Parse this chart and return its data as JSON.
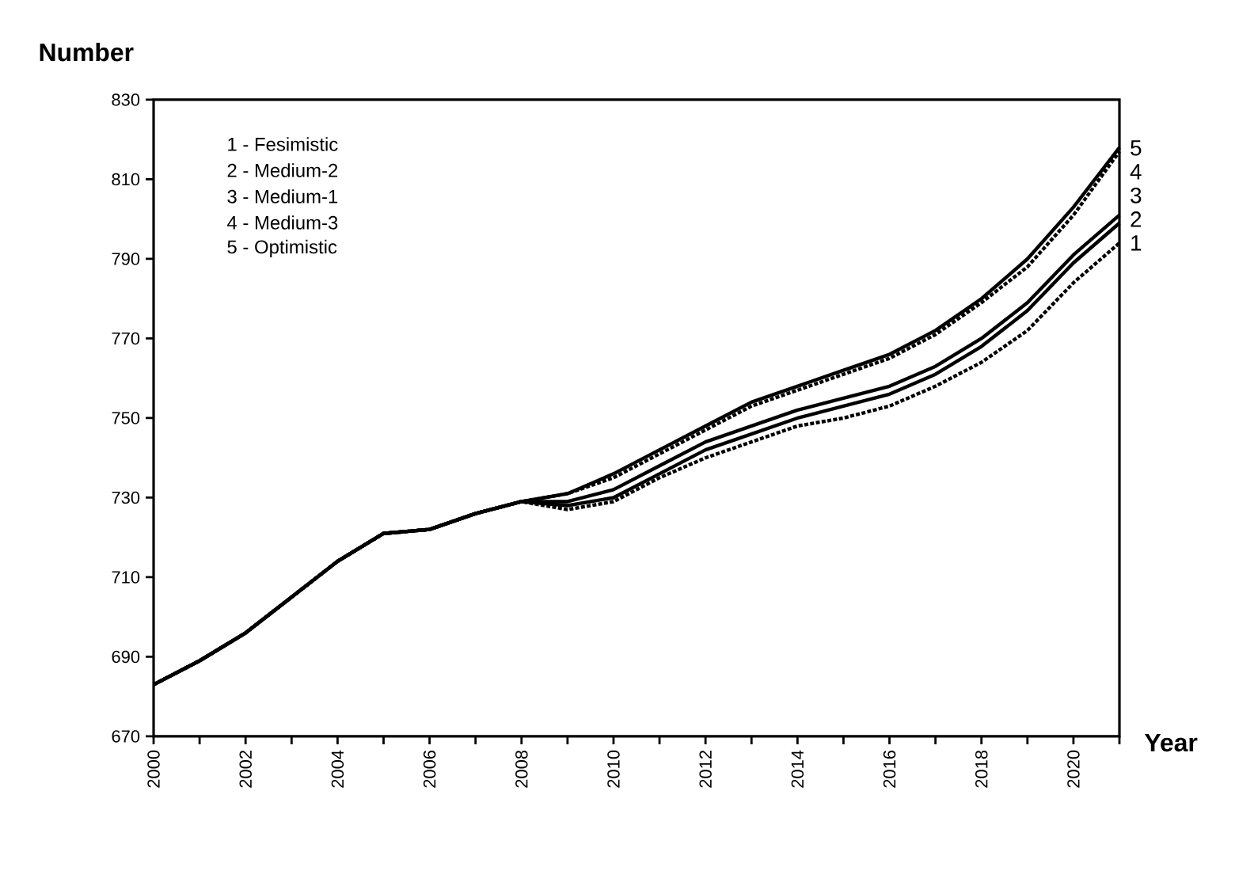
{
  "chart_data": {
    "type": "line",
    "xlabel": "Year",
    "ylabel": "Number",
    "x": [
      2000,
      2001,
      2002,
      2003,
      2004,
      2005,
      2006,
      2007,
      2008,
      2009,
      2010,
      2011,
      2012,
      2013,
      2014,
      2015,
      2016,
      2017,
      2018,
      2019,
      2020,
      2021
    ],
    "series": [
      {
        "name": "1",
        "color": "#000000",
        "line_style": "dashed",
        "values": [
          683,
          689,
          696,
          705,
          714,
          721,
          722,
          726,
          729,
          727,
          729,
          735,
          740,
          744,
          748,
          750,
          753,
          758,
          764,
          772,
          784,
          794
        ]
      },
      {
        "name": "2",
        "color": "#000000",
        "line_style": "solid",
        "values": [
          683,
          689,
          696,
          705,
          714,
          721,
          722,
          726,
          729,
          729,
          732,
          738,
          744,
          748,
          752,
          755,
          758,
          763,
          770,
          779,
          791,
          801
        ]
      },
      {
        "name": "3",
        "color": "#000000",
        "line_style": "solid",
        "values": [
          683,
          689,
          696,
          705,
          714,
          721,
          722,
          726,
          729,
          728,
          730,
          736,
          742,
          746,
          750,
          753,
          756,
          761,
          768,
          777,
          789,
          799
        ]
      },
      {
        "name": "4",
        "color": "#000000",
        "line_style": "dashed",
        "values": [
          683,
          689,
          696,
          705,
          714,
          721,
          722,
          726,
          729,
          731,
          735,
          741,
          747,
          753,
          757,
          761,
          765,
          771,
          779,
          788,
          801,
          817
        ]
      },
      {
        "name": "5",
        "color": "#000000",
        "line_style": "solid",
        "values": [
          683,
          689,
          696,
          705,
          714,
          721,
          722,
          726,
          729,
          731,
          736,
          742,
          748,
          754,
          758,
          762,
          766,
          772,
          780,
          790,
          803,
          818
        ]
      }
    ],
    "xlim": [
      2000,
      2021
    ],
    "xticks": [
      2000,
      {
        "value": 2001,
        "label": null
      },
      2002,
      {
        "value": 2003,
        "label": null
      },
      2004,
      {
        "value": 2005,
        "label": null
      },
      2006,
      {
        "value": 2007,
        "label": null
      },
      2008,
      {
        "value": 2009,
        "label": null
      },
      2010,
      {
        "value": 2011,
        "label": null
      },
      2012,
      {
        "value": 2013,
        "label": null
      },
      2014,
      {
        "value": 2015,
        "label": null
      },
      2016,
      {
        "value": 2017,
        "label": null
      },
      2018,
      {
        "value": 2019,
        "label": null
      },
      2020,
      {
        "value": 2021,
        "label": null
      }
    ],
    "ylim": [
      670,
      830
    ],
    "yticks": [
      670,
      690,
      710,
      730,
      750,
      770,
      790,
      810,
      830
    ],
    "grid": false,
    "legend": false,
    "marker": "none",
    "annotations": [
      "1 - Fesimistic",
      "2 - Medium-2",
      "3 - Medium-1",
      "4 - Medium-3",
      "5 - Optimistic"
    ]
  }
}
